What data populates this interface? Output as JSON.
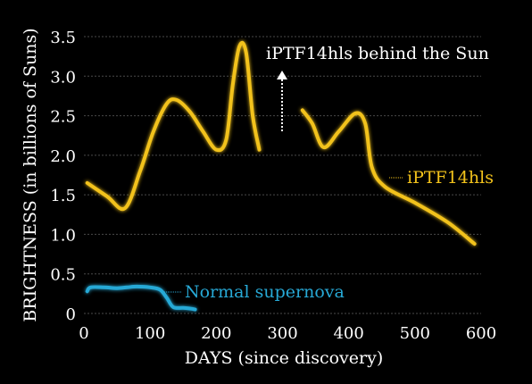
{
  "chart_data": {
    "type": "line",
    "xlabel": "DAYS (since discovery)",
    "ylabel": "BRIGHTNESS (in billions of Suns)",
    "xlim": [
      0,
      600
    ],
    "ylim": [
      0,
      3.5
    ],
    "x_ticks": [
      "0",
      "100",
      "200",
      "300",
      "400",
      "500",
      "600"
    ],
    "y_ticks": [
      "0",
      "0.5",
      "1.0",
      "1.5",
      "2.0",
      "2.5",
      "3.0",
      "3.5"
    ],
    "grid": true,
    "series": [
      {
        "name": "iPTF14hls",
        "color": "#f2c21b",
        "segments": [
          [
            [
              5,
              1.65
            ],
            [
              35,
              1.48
            ],
            [
              62,
              1.33
            ],
            [
              85,
              1.8
            ],
            [
              105,
              2.3
            ],
            [
              125,
              2.65
            ],
            [
              140,
              2.7
            ],
            [
              160,
              2.55
            ],
            [
              180,
              2.3
            ],
            [
              200,
              2.07
            ],
            [
              215,
              2.2
            ],
            [
              225,
              2.9
            ],
            [
              235,
              3.38
            ],
            [
              245,
              3.3
            ],
            [
              255,
              2.5
            ],
            [
              265,
              2.07
            ]
          ],
          [
            [
              330,
              2.57
            ],
            [
              345,
              2.4
            ],
            [
              362,
              2.1
            ],
            [
              385,
              2.3
            ],
            [
              410,
              2.53
            ],
            [
              425,
              2.4
            ],
            [
              435,
              1.85
            ],
            [
              455,
              1.6
            ],
            [
              500,
              1.4
            ],
            [
              550,
              1.15
            ],
            [
              590,
              0.88
            ]
          ]
        ]
      },
      {
        "name": "Normal supernova",
        "color": "#27a9d6",
        "segments": [
          [
            [
              5,
              0.28
            ],
            [
              10,
              0.33
            ],
            [
              30,
              0.33
            ],
            [
              50,
              0.32
            ],
            [
              65,
              0.33
            ],
            [
              80,
              0.34
            ],
            [
              100,
              0.33
            ],
            [
              115,
              0.3
            ],
            [
              125,
              0.2
            ],
            [
              135,
              0.08
            ],
            [
              150,
              0.07
            ],
            [
              162,
              0.06
            ],
            [
              168,
              0.05
            ]
          ]
        ]
      }
    ],
    "annotations": [
      {
        "text": "iPTF14hls behind the Sun",
        "color": "#ffffff"
      },
      {
        "text": "iPTF14hls",
        "color": "#f2c21b"
      },
      {
        "text": "Normal supernova",
        "color": "#27a9d6"
      }
    ]
  }
}
